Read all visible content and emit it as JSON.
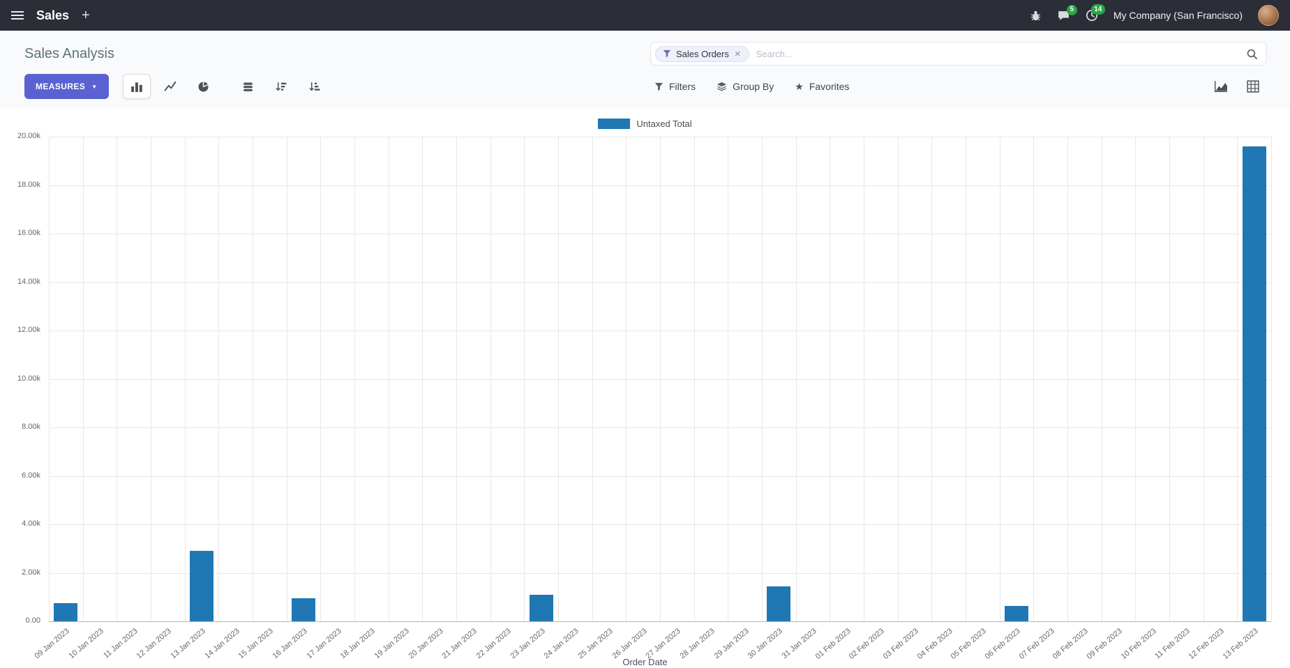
{
  "colors": {
    "primary_button": "#5a62d2",
    "badge_green": "#28a745",
    "navbar_bg": "#2b2e36"
  },
  "navbar": {
    "app_name": "Sales",
    "company_name": "My Company (San Francisco)",
    "icons": {
      "plus": "+"
    },
    "badges": {
      "messages": "5",
      "activities": "14"
    }
  },
  "control_panel": {
    "title": "Sales Analysis",
    "measures_button": {
      "label": "MEASURES",
      "caret": "▼"
    },
    "search": {
      "facet_label": "Sales Orders",
      "facet_remove": "×",
      "placeholder": "Search..."
    },
    "filter_menus": {
      "filters": "Filters",
      "group_by": "Group By",
      "favorites": "Favorites",
      "star": "★"
    }
  },
  "chart_data": {
    "type": "bar",
    "series_name": "Untaxed Total",
    "xlabel": "Order Date",
    "ylabel": "",
    "ylim": [
      0,
      20000
    ],
    "ytick_step": 2000,
    "ytick_labels": [
      "0.00",
      "2.00k",
      "4.00k",
      "6.00k",
      "8.00k",
      "10.00k",
      "12.00k",
      "14.00k",
      "16.00k",
      "18.00k",
      "20.00k"
    ],
    "bar_color": "#1f77b4",
    "grid_color": "#e8e8ea",
    "legend_position": "top",
    "grid": true,
    "categories": [
      "09 Jan 2023",
      "10 Jan 2023",
      "11 Jan 2023",
      "12 Jan 2023",
      "13 Jan 2023",
      "14 Jan 2023",
      "15 Jan 2023",
      "16 Jan 2023",
      "17 Jan 2023",
      "18 Jan 2023",
      "19 Jan 2023",
      "20 Jan 2023",
      "21 Jan 2023",
      "22 Jan 2023",
      "23 Jan 2023",
      "24 Jan 2023",
      "25 Jan 2023",
      "26 Jan 2023",
      "27 Jan 2023",
      "28 Jan 2023",
      "29 Jan 2023",
      "30 Jan 2023",
      "31 Jan 2023",
      "01 Feb 2023",
      "02 Feb 2023",
      "03 Feb 2023",
      "04 Feb 2023",
      "05 Feb 2023",
      "06 Feb 2023",
      "07 Feb 2023",
      "08 Feb 2023",
      "09 Feb 2023",
      "10 Feb 2023",
      "11 Feb 2023",
      "12 Feb 2023",
      "13 Feb 2023"
    ],
    "values": [
      750,
      0,
      0,
      0,
      2900,
      0,
      0,
      950,
      0,
      0,
      0,
      0,
      0,
      0,
      1080,
      0,
      0,
      0,
      0,
      0,
      0,
      1450,
      0,
      0,
      0,
      0,
      0,
      0,
      620,
      0,
      0,
      0,
      0,
      0,
      0,
      19600
    ]
  }
}
